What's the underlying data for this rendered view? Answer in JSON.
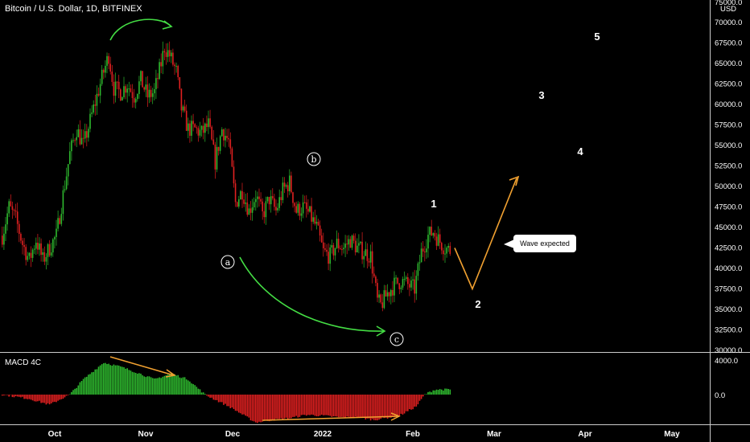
{
  "header": {
    "title": "Bitcoin / U.S. Dollar, 1D, BITFINEX"
  },
  "price_axis": {
    "currency": "USD",
    "ticks": [
      "75000.0",
      "70000.0",
      "67500.0",
      "65000.0",
      "62500.0",
      "60000.0",
      "57500.0",
      "55000.0",
      "52500.0",
      "50000.0",
      "47500.0",
      "45000.0",
      "42500.0",
      "40000.0",
      "37500.0",
      "35000.0",
      "32500.0",
      "30000.0"
    ]
  },
  "macd": {
    "title": "MACD 4C",
    "ticks": [
      "4000.0",
      "0.0"
    ]
  },
  "annotation": {
    "bubble_text": "Wave expected"
  },
  "wave_labels": {
    "a": "a",
    "b": "b",
    "c": "c",
    "n1": "1",
    "n2": "2",
    "n3": "3",
    "n4": "4",
    "n5": "5"
  },
  "colors": {
    "up": "#2eb82e",
    "down": "#e02020",
    "arrow_green": "#44dd44",
    "arrow_orange": "#f0a030"
  },
  "chart_data": {
    "type": "candlestick",
    "title": "Bitcoin / U.S. Dollar, 1D, BITFINEX",
    "ylim": [
      30000,
      75000
    ],
    "x_ticks": [
      "Oct",
      "Nov",
      "Dec",
      "2022",
      "Feb",
      "Mar",
      "Apr",
      "May"
    ],
    "price_path": [
      [
        0,
        44000
      ],
      [
        4,
        47500
      ],
      [
        8,
        46000
      ],
      [
        12,
        43000
      ],
      [
        16,
        41000
      ],
      [
        20,
        43500
      ],
      [
        24,
        41000
      ],
      [
        28,
        42500
      ],
      [
        32,
        44000
      ],
      [
        36,
        49000
      ],
      [
        40,
        54000
      ],
      [
        44,
        57000
      ],
      [
        48,
        55000
      ],
      [
        52,
        58000
      ],
      [
        56,
        61000
      ],
      [
        60,
        64000
      ],
      [
        63,
        66000
      ],
      [
        66,
        62000
      ],
      [
        70,
        61500
      ],
      [
        74,
        62500
      ],
      [
        78,
        61000
      ],
      [
        82,
        63000
      ],
      [
        86,
        61000
      ],
      [
        90,
        61500
      ],
      [
        94,
        65000
      ],
      [
        96,
        67000
      ],
      [
        99,
        66000
      ],
      [
        103,
        64000
      ],
      [
        106,
        59500
      ],
      [
        110,
        57000
      ],
      [
        114,
        57000
      ],
      [
        118,
        56500
      ],
      [
        122,
        57500
      ],
      [
        126,
        53000
      ],
      [
        130,
        57000
      ],
      [
        134,
        55500
      ],
      [
        138,
        48000
      ],
      [
        142,
        49500
      ],
      [
        146,
        47000
      ],
      [
        150,
        49000
      ],
      [
        154,
        46500
      ],
      [
        158,
        48500
      ],
      [
        162,
        47000
      ],
      [
        166,
        49500
      ],
      [
        170,
        50500
      ],
      [
        174,
        47000
      ],
      [
        178,
        47500
      ],
      [
        182,
        46500
      ],
      [
        186,
        45000
      ],
      [
        190,
        42000
      ],
      [
        194,
        41500
      ],
      [
        198,
        43000
      ],
      [
        202,
        42500
      ],
      [
        206,
        43500
      ],
      [
        210,
        42500
      ],
      [
        214,
        42000
      ],
      [
        218,
        41500
      ],
      [
        222,
        36000
      ],
      [
        224,
        35500
      ],
      [
        228,
        37000
      ],
      [
        232,
        38000
      ],
      [
        236,
        38500
      ],
      [
        240,
        38000
      ],
      [
        244,
        37500
      ],
      [
        248,
        42000
      ],
      [
        252,
        44000
      ],
      [
        255,
        44500
      ],
      [
        258,
        43500
      ],
      [
        262,
        42500
      ],
      [
        265,
        42200
      ]
    ],
    "wave_projection": [
      [
        0,
        42500
      ],
      [
        1,
        37500
      ],
      [
        2,
        51000
      ]
    ],
    "macd_values": [
      [
        0,
        0
      ],
      [
        16,
        -500
      ],
      [
        28,
        -1200
      ],
      [
        40,
        0
      ],
      [
        48,
        1800
      ],
      [
        60,
        3800
      ],
      [
        70,
        3300
      ],
      [
        80,
        2600
      ],
      [
        90,
        1800
      ],
      [
        100,
        2500
      ],
      [
        110,
        1800
      ],
      [
        120,
        0
      ],
      [
        135,
        -1500
      ],
      [
        150,
        -3300
      ],
      [
        160,
        -3000
      ],
      [
        170,
        -2800
      ],
      [
        180,
        -2400
      ],
      [
        190,
        -2500
      ],
      [
        200,
        -2700
      ],
      [
        210,
        -2700
      ],
      [
        220,
        -3000
      ],
      [
        235,
        -2500
      ],
      [
        245,
        -1400
      ],
      [
        250,
        0
      ],
      [
        256,
        600
      ],
      [
        262,
        600
      ]
    ]
  }
}
